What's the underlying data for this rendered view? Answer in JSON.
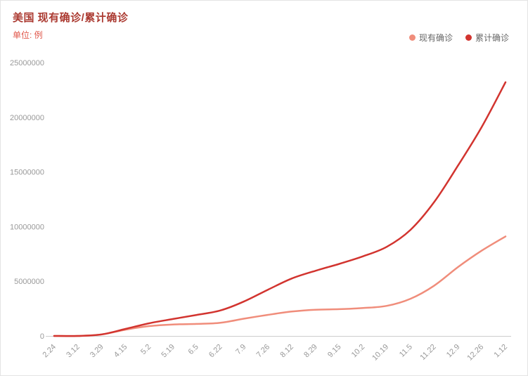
{
  "header": {
    "title": "美国 现有确诊/累计确诊",
    "unit_label": "单位: 例",
    "title_color": "#ab3a31",
    "unit_color": "#e0564a"
  },
  "legend": [
    {
      "label": "现有确诊",
      "color": "#f08d7b"
    },
    {
      "label": "累计确诊",
      "color": "#d2342f"
    }
  ],
  "chart_data": {
    "type": "line",
    "title": "美国 现有确诊/累计确诊",
    "unit": "单位: 例",
    "legend_position": "top-right",
    "grid": false,
    "categories": [
      "2.24",
      "3.12",
      "3.29",
      "4.15",
      "5.2",
      "5.19",
      "6.5",
      "6.22",
      "7.9",
      "7.26",
      "8.12",
      "8.29",
      "9.15",
      "10.2",
      "10.19",
      "11.5",
      "11.22",
      "12.9",
      "12.26",
      "1.12"
    ],
    "series": [
      {
        "name": "现有确诊",
        "color": "#f08d7b",
        "values": [
          50,
          1200,
          132000,
          573000,
          900000,
          1050000,
          1100000,
          1200000,
          1580000,
          1930000,
          2230000,
          2400000,
          2450000,
          2550000,
          2750000,
          3400000,
          4600000,
          6300000,
          7800000,
          9100000
        ]
      },
      {
        "name": "累计确诊",
        "color": "#d2342f",
        "values": [
          53,
          1300,
          140000,
          640000,
          1160000,
          1550000,
          1920000,
          2330000,
          3160000,
          4230000,
          5250000,
          5960000,
          6590000,
          7280000,
          8150000,
          9700000,
          12250000,
          15580000,
          19110000,
          23200000
        ]
      }
    ],
    "ylim": [
      0,
      25000000
    ],
    "yticks": [
      0,
      5000000,
      10000000,
      15000000,
      20000000,
      25000000
    ],
    "xlabel": "",
    "ylabel": ""
  }
}
